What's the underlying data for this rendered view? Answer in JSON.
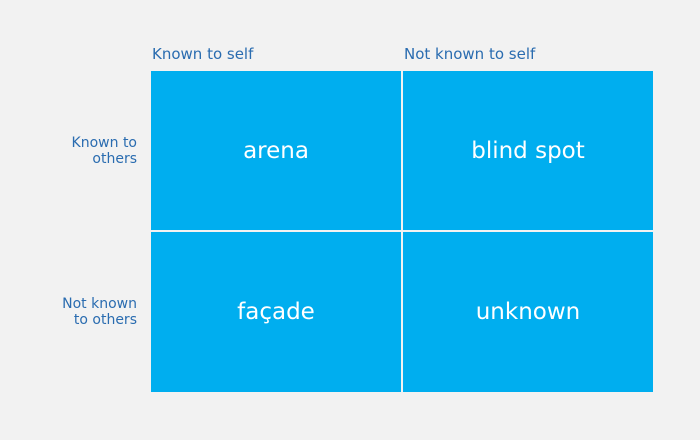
{
  "columns": [
    "Known to self",
    "Not known to self"
  ],
  "rows": [
    {
      "lines": [
        "Known to",
        "others"
      ]
    },
    {
      "lines": [
        "Not known",
        "to others"
      ]
    }
  ],
  "cells": [
    [
      "arena",
      "blind spot"
    ],
    [
      "façade",
      "unknown"
    ]
  ]
}
